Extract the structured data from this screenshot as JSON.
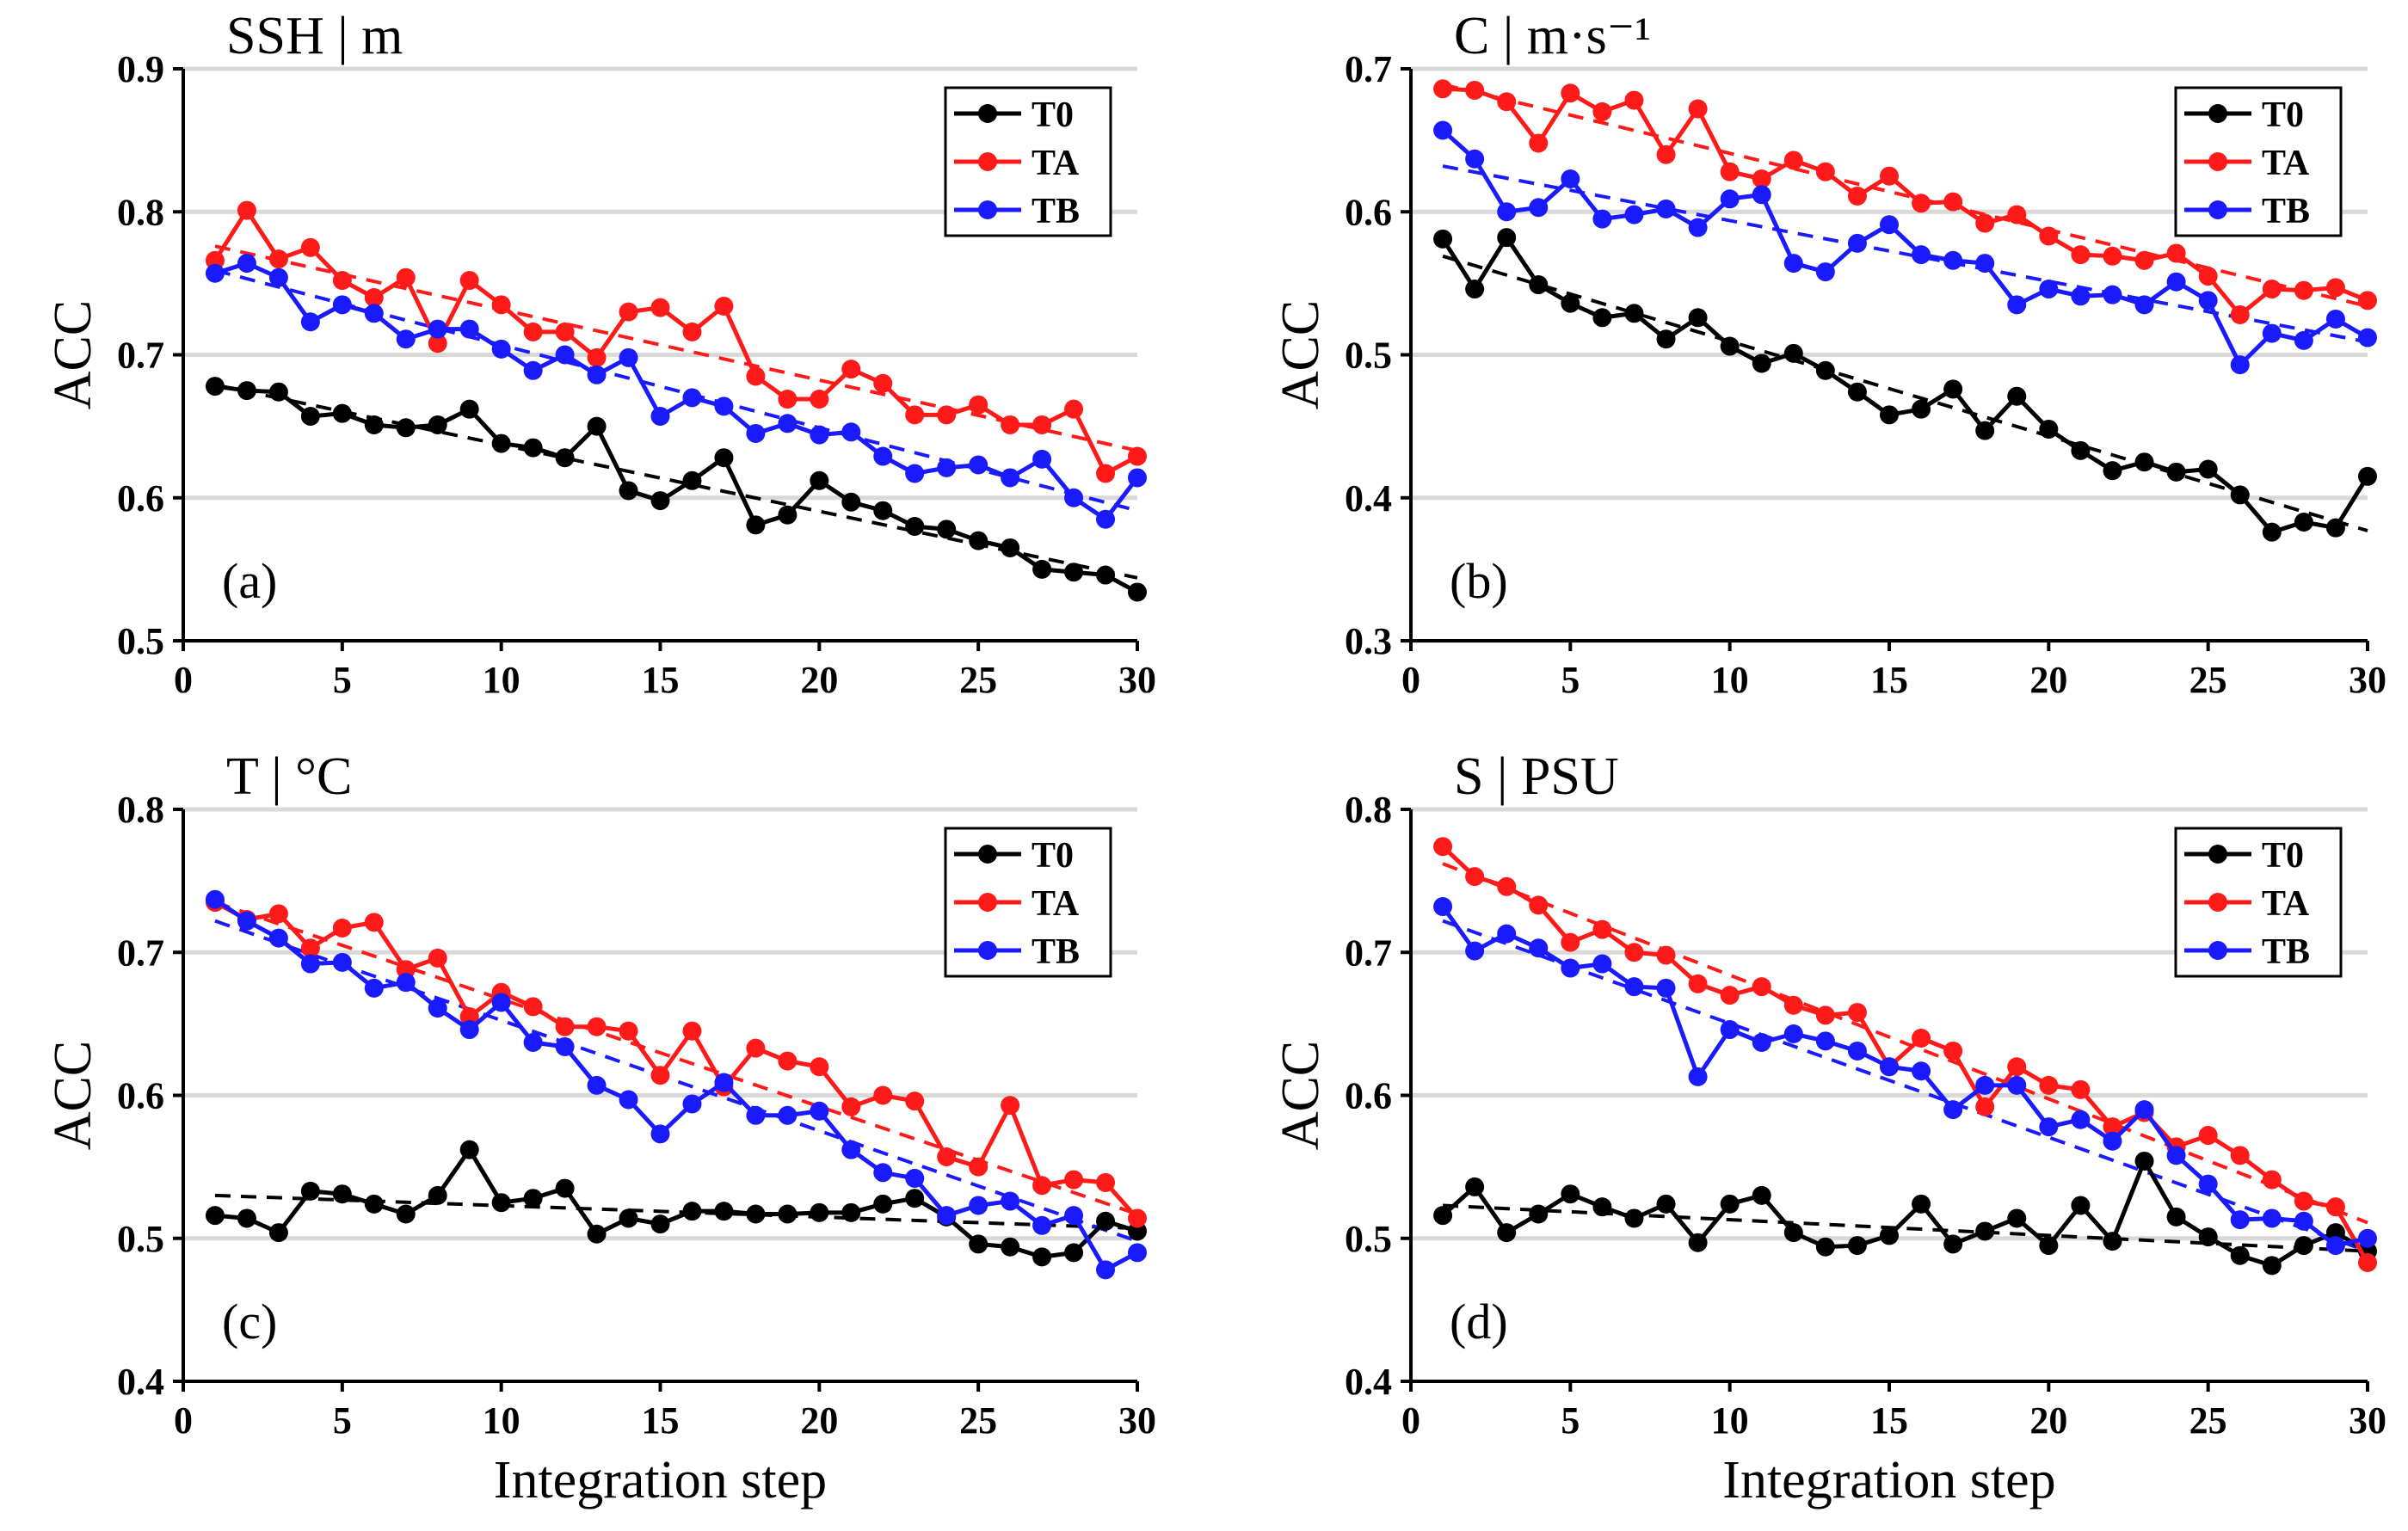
{
  "figure": {
    "xlabel": "Integration step",
    "ylabel": "ACC"
  },
  "colors": {
    "T0": "#000000",
    "TA": "#ff1a1a",
    "TB": "#1a1aff"
  },
  "chart_data": [
    {
      "type": "line",
      "panel": "(a)",
      "title": "SSH | m",
      "xlabel": "",
      "ylabel": "ACC",
      "xlim": [
        0,
        30
      ],
      "ylim": [
        0.5,
        0.9
      ],
      "xticks": [
        0,
        5,
        10,
        15,
        20,
        25,
        30
      ],
      "yticks": [
        0.5,
        0.6,
        0.7,
        0.8,
        0.9
      ],
      "ytick_labels": [
        "0.5",
        "0.6",
        "0.7",
        "0.8",
        "0.9"
      ],
      "grid": "horizontal",
      "legend": "top-right",
      "x": [
        1,
        2,
        3,
        4,
        5,
        6,
        7,
        8,
        9,
        10,
        11,
        12,
        13,
        14,
        15,
        16,
        17,
        18,
        19,
        20,
        21,
        22,
        23,
        24,
        25,
        26,
        27,
        28,
        29,
        30
      ],
      "series": [
        {
          "name": "T0",
          "values": [
            0.678,
            0.675,
            0.674,
            0.657,
            0.659,
            0.651,
            0.649,
            0.651,
            0.662,
            0.638,
            0.635,
            0.628,
            0.65,
            0.605,
            0.598,
            0.612,
            0.628,
            0.581,
            0.588,
            0.612,
            0.597,
            0.591,
            0.58,
            0.578,
            0.57,
            0.565,
            0.55,
            0.548,
            0.546,
            0.534
          ],
          "trend": [
            0.679,
            0.544
          ]
        },
        {
          "name": "TA",
          "values": [
            0.766,
            0.801,
            0.767,
            0.775,
            0.752,
            0.74,
            0.754,
            0.708,
            0.752,
            0.735,
            0.716,
            0.716,
            0.698,
            0.73,
            0.733,
            0.716,
            0.734,
            0.685,
            0.669,
            0.669,
            0.69,
            0.68,
            0.658,
            0.658,
            0.665,
            0.651,
            0.651,
            0.662,
            0.617,
            0.629
          ],
          "trend": [
            0.776,
            0.633
          ]
        },
        {
          "name": "TB",
          "values": [
            0.757,
            0.764,
            0.754,
            0.723,
            0.735,
            0.729,
            0.711,
            0.718,
            0.718,
            0.704,
            0.689,
            0.7,
            0.686,
            0.698,
            0.657,
            0.67,
            0.664,
            0.645,
            0.652,
            0.644,
            0.646,
            0.629,
            0.617,
            0.621,
            0.623,
            0.614,
            0.627,
            0.6,
            0.585,
            0.614
          ],
          "trend": [
            0.759,
            0.591
          ]
        }
      ]
    },
    {
      "type": "line",
      "panel": "(b)",
      "title": "C | m·s⁻¹",
      "xlabel": "",
      "ylabel": "ACC",
      "xlim": [
        0,
        30
      ],
      "ylim": [
        0.3,
        0.7
      ],
      "xticks": [
        0,
        5,
        10,
        15,
        20,
        25,
        30
      ],
      "yticks": [
        0.3,
        0.4,
        0.5,
        0.6,
        0.7
      ],
      "ytick_labels": [
        "0.3",
        "0.4",
        "0.5",
        "0.6",
        "0.7"
      ],
      "grid": "horizontal",
      "legend": "top-right",
      "x": [
        1,
        2,
        3,
        4,
        5,
        6,
        7,
        8,
        9,
        10,
        11,
        12,
        13,
        14,
        15,
        16,
        17,
        18,
        19,
        20,
        21,
        22,
        23,
        24,
        25,
        26,
        27,
        28,
        29,
        30
      ],
      "series": [
        {
          "name": "T0",
          "values": [
            0.581,
            0.546,
            0.582,
            0.549,
            0.536,
            0.526,
            0.529,
            0.511,
            0.526,
            0.506,
            0.494,
            0.501,
            0.489,
            0.474,
            0.458,
            0.462,
            0.476,
            0.447,
            0.471,
            0.448,
            0.433,
            0.419,
            0.425,
            0.418,
            0.42,
            0.402,
            0.376,
            0.383,
            0.379,
            0.415
          ],
          "trend": [
            0.569,
            0.377
          ]
        },
        {
          "name": "TA",
          "values": [
            0.686,
            0.685,
            0.677,
            0.648,
            0.683,
            0.67,
            0.678,
            0.64,
            0.672,
            0.628,
            0.623,
            0.636,
            0.628,
            0.611,
            0.625,
            0.606,
            0.607,
            0.592,
            0.598,
            0.583,
            0.57,
            0.569,
            0.566,
            0.571,
            0.555,
            0.528,
            0.546,
            0.545,
            0.547,
            0.538
          ],
          "trend": [
            0.689,
            0.534
          ]
        },
        {
          "name": "TB",
          "values": [
            0.657,
            0.637,
            0.6,
            0.603,
            0.623,
            0.595,
            0.598,
            0.602,
            0.589,
            0.609,
            0.612,
            0.564,
            0.558,
            0.578,
            0.591,
            0.57,
            0.566,
            0.564,
            0.535,
            0.546,
            0.541,
            0.542,
            0.535,
            0.551,
            0.538,
            0.493,
            0.515,
            0.51,
            0.525,
            0.512
          ],
          "trend": [
            0.632,
            0.509
          ]
        }
      ]
    },
    {
      "type": "line",
      "panel": "(c)",
      "title": "T | °C",
      "xlabel": "Integration step",
      "ylabel": "ACC",
      "xlim": [
        0,
        30
      ],
      "ylim": [
        0.4,
        0.8
      ],
      "xticks": [
        0,
        5,
        10,
        15,
        20,
        25,
        30
      ],
      "yticks": [
        0.4,
        0.5,
        0.6,
        0.7,
        0.8
      ],
      "ytick_labels": [
        "0.4",
        "0.5",
        "0.6",
        "0.7",
        "0.8"
      ],
      "grid": "horizontal",
      "legend": "top-right",
      "x": [
        1,
        2,
        3,
        4,
        5,
        6,
        7,
        8,
        9,
        10,
        11,
        12,
        13,
        14,
        15,
        16,
        17,
        18,
        19,
        20,
        21,
        22,
        23,
        24,
        25,
        26,
        27,
        28,
        29,
        30
      ],
      "series": [
        {
          "name": "T0",
          "values": [
            0.516,
            0.514,
            0.504,
            0.533,
            0.531,
            0.524,
            0.517,
            0.53,
            0.562,
            0.525,
            0.528,
            0.535,
            0.503,
            0.514,
            0.51,
            0.519,
            0.519,
            0.517,
            0.517,
            0.518,
            0.518,
            0.524,
            0.528,
            0.515,
            0.496,
            0.494,
            0.487,
            0.49,
            0.512,
            0.505
          ],
          "trend": [
            0.53,
            0.507
          ]
        },
        {
          "name": "TA",
          "values": [
            0.735,
            0.723,
            0.727,
            0.703,
            0.717,
            0.721,
            0.688,
            0.696,
            0.655,
            0.672,
            0.662,
            0.648,
            0.648,
            0.645,
            0.614,
            0.645,
            0.606,
            0.633,
            0.624,
            0.62,
            0.592,
            0.6,
            0.596,
            0.557,
            0.55,
            0.593,
            0.537,
            0.541,
            0.539,
            0.514
          ],
          "trend": [
            0.735,
            0.517
          ]
        },
        {
          "name": "TB",
          "values": [
            0.737,
            0.722,
            0.71,
            0.692,
            0.693,
            0.675,
            0.679,
            0.661,
            0.646,
            0.665,
            0.637,
            0.634,
            0.607,
            0.597,
            0.573,
            0.594,
            0.609,
            0.586,
            0.586,
            0.589,
            0.562,
            0.546,
            0.542,
            0.516,
            0.523,
            0.526,
            0.509,
            0.516,
            0.478,
            0.49
          ],
          "trend": [
            0.722,
            0.498
          ]
        }
      ]
    },
    {
      "type": "line",
      "panel": "(d)",
      "title": "S | PSU",
      "xlabel": "Integration step",
      "ylabel": "ACC",
      "xlim": [
        0,
        30
      ],
      "ylim": [
        0.4,
        0.8
      ],
      "xticks": [
        0,
        5,
        10,
        15,
        20,
        25,
        30
      ],
      "yticks": [
        0.4,
        0.5,
        0.6,
        0.7,
        0.8
      ],
      "ytick_labels": [
        "0.4",
        "0.5",
        "0.6",
        "0.7",
        "0.8"
      ],
      "grid": "horizontal",
      "legend": "top-right",
      "x": [
        1,
        2,
        3,
        4,
        5,
        6,
        7,
        8,
        9,
        10,
        11,
        12,
        13,
        14,
        15,
        16,
        17,
        18,
        19,
        20,
        21,
        22,
        23,
        24,
        25,
        26,
        27,
        28,
        29,
        30
      ],
      "series": [
        {
          "name": "T0",
          "values": [
            0.516,
            0.536,
            0.504,
            0.517,
            0.531,
            0.522,
            0.514,
            0.524,
            0.497,
            0.524,
            0.53,
            0.504,
            0.494,
            0.495,
            0.502,
            0.524,
            0.496,
            0.505,
            0.514,
            0.495,
            0.523,
            0.498,
            0.554,
            0.515,
            0.501,
            0.488,
            0.481,
            0.495,
            0.504,
            0.491
          ],
          "trend": [
            0.523,
            0.491
          ]
        },
        {
          "name": "TA",
          "values": [
            0.774,
            0.753,
            0.746,
            0.733,
            0.707,
            0.716,
            0.7,
            0.698,
            0.678,
            0.67,
            0.676,
            0.663,
            0.656,
            0.658,
            0.62,
            0.64,
            0.631,
            0.592,
            0.62,
            0.607,
            0.604,
            0.578,
            0.588,
            0.564,
            0.572,
            0.558,
            0.541,
            0.526,
            0.522,
            0.483
          ],
          "trend": [
            0.762,
            0.511
          ]
        },
        {
          "name": "TB",
          "values": [
            0.732,
            0.701,
            0.713,
            0.703,
            0.689,
            0.692,
            0.676,
            0.675,
            0.613,
            0.646,
            0.637,
            0.643,
            0.638,
            0.631,
            0.62,
            0.617,
            0.59,
            0.607,
            0.607,
            0.578,
            0.583,
            0.568,
            0.59,
            0.558,
            0.538,
            0.513,
            0.514,
            0.512,
            0.495,
            0.5
          ],
          "trend": [
            0.722,
            0.491
          ]
        }
      ]
    }
  ]
}
